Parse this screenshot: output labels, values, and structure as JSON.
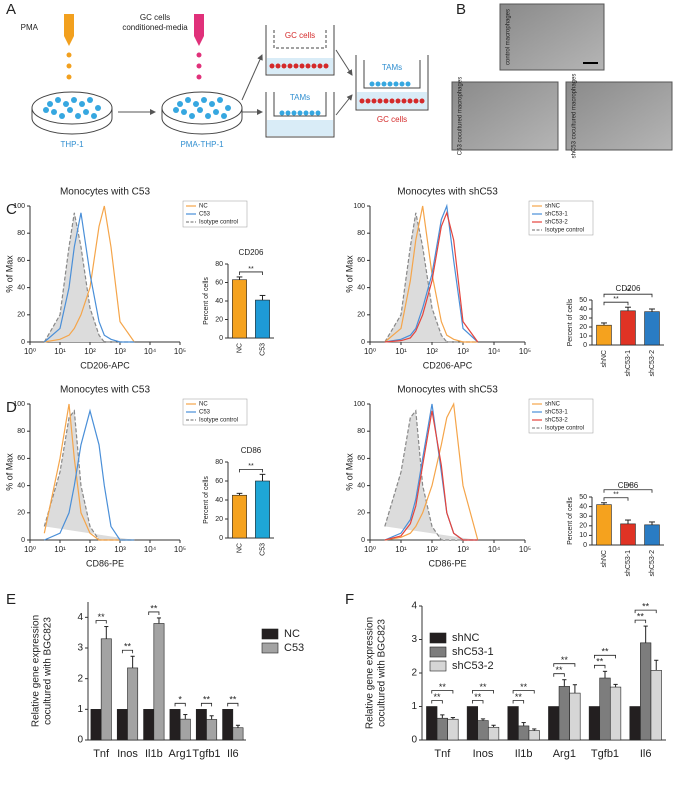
{
  "panels": [
    "A",
    "B",
    "C",
    "D",
    "E",
    "F"
  ],
  "diagram": {
    "pma": "PMA",
    "media": [
      "GC cells",
      "conditioned-media"
    ],
    "thp1": "THP-1",
    "pma_thp1": "PMA-THP-1",
    "gc_top": "GC cells",
    "tams_mid": "TAMs",
    "tams_right": "TAMs",
    "gc_right": "GC cells"
  },
  "micrographs": [
    "control macrophages",
    "C53 cocultured macrophages",
    "shC53 cocultured macrophages"
  ],
  "chart_data": [
    {
      "type": "line",
      "title": "Monocytes  with C53",
      "xlabel": "CD206-APC",
      "ylabel": "% of Max",
      "xscale": "log",
      "x": [
        3,
        10,
        20,
        30,
        50,
        100,
        200,
        300,
        500,
        1000,
        3000
      ],
      "xlim": [
        1,
        100000
      ],
      "xticks": [
        {
          "value": 1,
          "label": "10⁰"
        },
        {
          "value": 10,
          "label": "10¹"
        },
        {
          "value": 100,
          "label": "10²"
        },
        {
          "value": 1000,
          "label": "10³"
        },
        {
          "value": 10000,
          "label": "10⁴"
        },
        {
          "value": 100000,
          "label": "10⁵"
        }
      ],
      "ylim": [
        0,
        100
      ],
      "yticks": [
        0,
        20,
        40,
        60,
        80,
        100
      ],
      "series": [
        {
          "name": "NC",
          "color": "#f5a54a",
          "values": [
            0,
            2,
            5,
            10,
            20,
            40,
            85,
            100,
            70,
            15,
            0
          ]
        },
        {
          "name": "C53",
          "color": "#4a8fd8",
          "values": [
            0,
            10,
            40,
            70,
            95,
            50,
            15,
            5,
            2,
            0,
            0
          ]
        },
        {
          "name": "Isotype control",
          "color": "#888888",
          "fill": "#dcdcdc",
          "dashed": true,
          "values": [
            0,
            20,
            70,
            95,
            70,
            25,
            5,
            0,
            0,
            0,
            0
          ]
        }
      ]
    },
    {
      "type": "bar",
      "title": "CD206",
      "ylabel": "Percent of cells",
      "categories": [
        "NC",
        "C53"
      ],
      "ylim": [
        0,
        80
      ],
      "yticks": [
        0,
        20,
        40,
        60,
        80
      ],
      "series": [
        {
          "colors": [
            "#f5a21e",
            "#1e9ad6"
          ],
          "values": [
            63,
            41
          ],
          "errors": [
            3,
            5
          ],
          "significance": [
            null,
            "**"
          ]
        }
      ]
    },
    {
      "type": "line",
      "title": "Monocytes with shC53",
      "xlabel": "CD206-APC",
      "ylabel": "% of Max",
      "xscale": "log",
      "x": [
        3,
        10,
        20,
        30,
        50,
        100,
        200,
        300,
        500,
        1000,
        3000
      ],
      "xlim": [
        1,
        100000
      ],
      "xticks": [
        {
          "value": 1,
          "label": "10⁰"
        },
        {
          "value": 10,
          "label": "10¹"
        },
        {
          "value": 100,
          "label": "10²"
        },
        {
          "value": 1000,
          "label": "10³"
        },
        {
          "value": 10000,
          "label": "10⁴"
        },
        {
          "value": 100000,
          "label": "10⁵"
        }
      ],
      "ylim": [
        0,
        100
      ],
      "yticks": [
        0,
        20,
        40,
        60,
        80,
        100
      ],
      "series": [
        {
          "name": "shNC",
          "color": "#f5a54a",
          "values": [
            0,
            10,
            45,
            75,
            100,
            50,
            15,
            5,
            2,
            0,
            0
          ]
        },
        {
          "name": "shC53-1",
          "color": "#4a8fd8",
          "values": [
            0,
            2,
            5,
            10,
            25,
            50,
            90,
            100,
            60,
            10,
            0
          ]
        },
        {
          "name": "shC53-2",
          "color": "#e5443c",
          "values": [
            0,
            1,
            3,
            8,
            20,
            45,
            85,
            95,
            75,
            15,
            0
          ]
        },
        {
          "name": "Isotype control",
          "color": "#888888",
          "fill": "#dcdcdc",
          "dashed": true,
          "values": [
            0,
            20,
            70,
            95,
            70,
            25,
            5,
            0,
            0,
            0,
            0
          ]
        }
      ]
    },
    {
      "type": "bar",
      "title": "CD206",
      "ylabel": "Percent of cells",
      "categories": [
        "shNC",
        "shC53-1",
        "shC53-2"
      ],
      "ylim": [
        0,
        50
      ],
      "yticks": [
        0,
        10,
        20,
        30,
        40,
        50
      ],
      "series": [
        {
          "colors": [
            "#f5a21e",
            "#e03324",
            "#2a7cc4"
          ],
          "values": [
            22,
            38,
            37
          ],
          "errors": [
            2.5,
            4,
            3
          ],
          "significance": [
            null,
            "**",
            "**"
          ]
        }
      ]
    },
    {
      "type": "line",
      "title": "Monocytes with C53",
      "xlabel": "CD86-PE",
      "ylabel": "% of Max",
      "xscale": "log",
      "x": [
        3,
        10,
        20,
        30,
        50,
        100,
        200,
        300,
        500,
        1000,
        3000
      ],
      "xlim": [
        1,
        100000
      ],
      "xticks": [
        {
          "value": 1,
          "label": "10⁰"
        },
        {
          "value": 10,
          "label": "10¹"
        },
        {
          "value": 100,
          "label": "10²"
        },
        {
          "value": 1000,
          "label": "10³"
        },
        {
          "value": 10000,
          "label": "10⁴"
        },
        {
          "value": 100000,
          "label": "10⁵"
        }
      ],
      "ylim": [
        0,
        100
      ],
      "yticks": [
        0,
        20,
        40,
        60,
        80,
        100
      ],
      "series": [
        {
          "name": "NC",
          "color": "#f5a54a",
          "values": [
            5,
            60,
            100,
            60,
            20,
            5,
            0,
            0,
            0,
            0,
            0
          ]
        },
        {
          "name": "C53",
          "color": "#4a8fd8",
          "values": [
            0,
            5,
            20,
            40,
            70,
            95,
            70,
            40,
            10,
            0,
            0
          ]
        },
        {
          "name": "Isotype control",
          "color": "#888888",
          "fill": "#dcdcdc",
          "dashed": true,
          "values": [
            10,
            50,
            90,
            95,
            40,
            10,
            0,
            0,
            0,
            0,
            0
          ]
        }
      ]
    },
    {
      "type": "bar",
      "title": "CD86",
      "ylabel": "Percent of cells",
      "categories": [
        "NC",
        "C53"
      ],
      "ylim": [
        0,
        80
      ],
      "yticks": [
        0,
        20,
        40,
        60,
        80
      ],
      "series": [
        {
          "colors": [
            "#f5a21e",
            "#1ea6d6"
          ],
          "values": [
            45,
            60
          ],
          "errors": [
            2,
            7
          ],
          "significance": [
            null,
            "**"
          ]
        }
      ]
    },
    {
      "type": "line",
      "title": "Monocytes with shC53",
      "xlabel": "CD86-PE",
      "ylabel": "% of Max",
      "xscale": "log",
      "x": [
        3,
        10,
        20,
        30,
        50,
        100,
        200,
        300,
        500,
        1000,
        3000
      ],
      "xlim": [
        1,
        100000
      ],
      "xticks": [
        {
          "value": 1,
          "label": "10⁰"
        },
        {
          "value": 10,
          "label": "10¹"
        },
        {
          "value": 100,
          "label": "10²"
        },
        {
          "value": 1000,
          "label": "10³"
        },
        {
          "value": 10000,
          "label": "10⁴"
        },
        {
          "value": 100000,
          "label": "10⁵"
        }
      ],
      "ylim": [
        0,
        100
      ],
      "yticks": [
        0,
        20,
        40,
        60,
        80,
        100
      ],
      "series": [
        {
          "name": "shNC",
          "color": "#f5a54a",
          "values": [
            0,
            2,
            5,
            10,
            20,
            40,
            70,
            90,
            100,
            40,
            0
          ]
        },
        {
          "name": "shC53-1",
          "color": "#4a8fd8",
          "values": [
            0,
            5,
            15,
            30,
            60,
            100,
            50,
            20,
            5,
            0,
            0
          ]
        },
        {
          "name": "shC53-2",
          "color": "#e5443c",
          "values": [
            0,
            3,
            12,
            25,
            55,
            95,
            55,
            20,
            5,
            0,
            0
          ]
        },
        {
          "name": "Isotype control",
          "color": "#888888",
          "fill": "#dcdcdc",
          "dashed": true,
          "values": [
            10,
            50,
            90,
            95,
            40,
            10,
            0,
            0,
            0,
            0,
            0
          ]
        }
      ]
    },
    {
      "type": "bar",
      "title": "CD86",
      "ylabel": "Percent of cells",
      "categories": [
        "shNC",
        "shC53-1",
        "shC53-2"
      ],
      "ylim": [
        0,
        50
      ],
      "yticks": [
        0,
        10,
        20,
        30,
        40,
        50
      ],
      "series": [
        {
          "colors": [
            "#f5a21e",
            "#e03324",
            "#2a7cc4"
          ],
          "values": [
            42,
            22,
            21
          ],
          "errors": [
            2,
            4,
            3
          ],
          "significance": [
            null,
            "**",
            "**"
          ]
        }
      ]
    },
    {
      "type": "bar",
      "ylabel": [
        "Relative gene expression",
        "cocultured with BGC823"
      ],
      "categories": [
        "Tnf",
        "Inos",
        "Il1b",
        "Arg1",
        "Tgfb1",
        "Il6"
      ],
      "ylim": [
        0,
        4.5
      ],
      "yticks": [
        0,
        1,
        2,
        3,
        4
      ],
      "series": [
        {
          "name": "NC",
          "color": "#231f20",
          "values": [
            1,
            1,
            1,
            1,
            1,
            1
          ]
        },
        {
          "name": "C53",
          "color": "#a3a3a3",
          "values": [
            3.3,
            2.35,
            3.8,
            0.68,
            0.67,
            0.4
          ],
          "errors": [
            0.4,
            0.38,
            0.18,
            0.15,
            0.12,
            0.08
          ],
          "significance": [
            "**",
            "**",
            "**",
            "*",
            "**",
            "**"
          ]
        }
      ]
    },
    {
      "type": "bar",
      "ylabel": [
        "Relative gene expression",
        "cocultured with BGC823"
      ],
      "categories": [
        "Tnf",
        "Inos",
        "Il1b",
        "Arg1",
        "Tgfb1",
        "Il6"
      ],
      "ylim": [
        0,
        4
      ],
      "yticks": [
        0,
        1,
        2,
        3,
        4
      ],
      "series": [
        {
          "name": "shNC",
          "color": "#231f20",
          "values": [
            1,
            1,
            1,
            1,
            1,
            1
          ]
        },
        {
          "name": "shC53-1",
          "color": "#7d7d7d",
          "values": [
            0.65,
            0.58,
            0.42,
            1.6,
            1.85,
            2.9
          ],
          "errors": [
            0.1,
            0.05,
            0.1,
            0.2,
            0.2,
            0.5
          ],
          "significance": [
            "**",
            "**",
            "**",
            "**",
            "**",
            "**"
          ]
        },
        {
          "name": "shC53-2",
          "color": "#d6d6d6",
          "values": [
            0.62,
            0.38,
            0.28,
            1.4,
            1.58,
            2.08
          ],
          "errors": [
            0.05,
            0.06,
            0.05,
            0.25,
            0.08,
            0.3
          ],
          "significance": [
            "**",
            "**",
            "**",
            "**",
            "**",
            "**"
          ]
        }
      ]
    }
  ]
}
